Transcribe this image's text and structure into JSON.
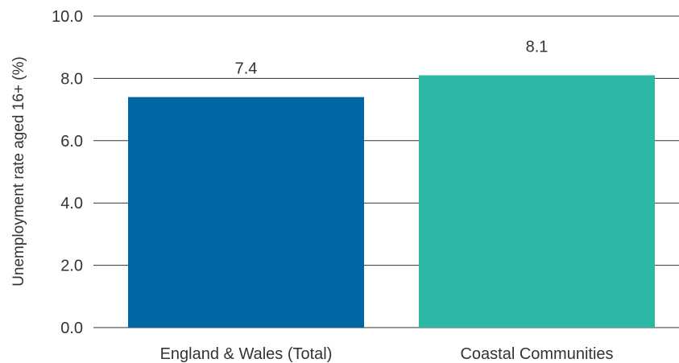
{
  "chart_data": {
    "type": "bar",
    "title": "",
    "xlabel": "",
    "ylabel": "Unemployment rate aged 16+ (%)",
    "categories": [
      "England & Wales (Total)",
      "Coastal Communities"
    ],
    "values": [
      7.4,
      8.1
    ],
    "value_labels": [
      "7.4",
      "8.1"
    ],
    "colors": [
      "#0067a5",
      "#2bb9a6"
    ],
    "ylim": [
      0,
      10
    ],
    "yticks": [
      0,
      2,
      4,
      6,
      8,
      10
    ],
    "ytick_labels": [
      "0.0",
      "2.0",
      "4.0",
      "6.0",
      "8.0",
      "10.0"
    ],
    "grid": true,
    "legend": "none"
  }
}
